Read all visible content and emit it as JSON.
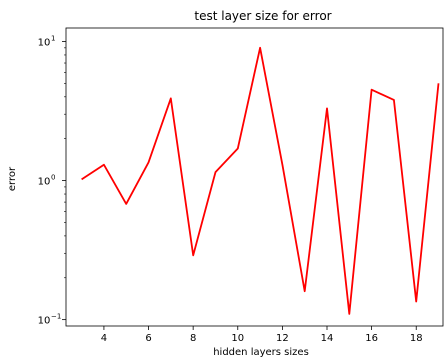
{
  "chart_data": {
    "type": "line",
    "title": "test layer size for error",
    "xlabel": "hidden layers sizes",
    "ylabel": "error",
    "y_scale": "log",
    "ylim": [
      0.09,
      12.5
    ],
    "xlim": [
      2.3,
      19.2
    ],
    "x_ticks": [
      4,
      6,
      8,
      10,
      12,
      14,
      16,
      18
    ],
    "y_ticks": [
      {
        "value": 0.1,
        "base": "10",
        "exp": "−1"
      },
      {
        "value": 1,
        "base": "10",
        "exp": "0"
      },
      {
        "value": 10,
        "base": "10",
        "exp": "1"
      }
    ],
    "grid": false,
    "series": [
      {
        "color": "#ff0000",
        "x": [
          3,
          4,
          5,
          6,
          7,
          8,
          9,
          10,
          11,
          12,
          13,
          14,
          15,
          16,
          17,
          18,
          19
        ],
        "y": [
          1.02,
          1.3,
          0.68,
          1.35,
          3.9,
          0.29,
          1.15,
          1.7,
          9.0,
          1.3,
          0.16,
          3.3,
          0.11,
          4.5,
          3.8,
          0.135,
          5.0
        ]
      }
    ]
  }
}
